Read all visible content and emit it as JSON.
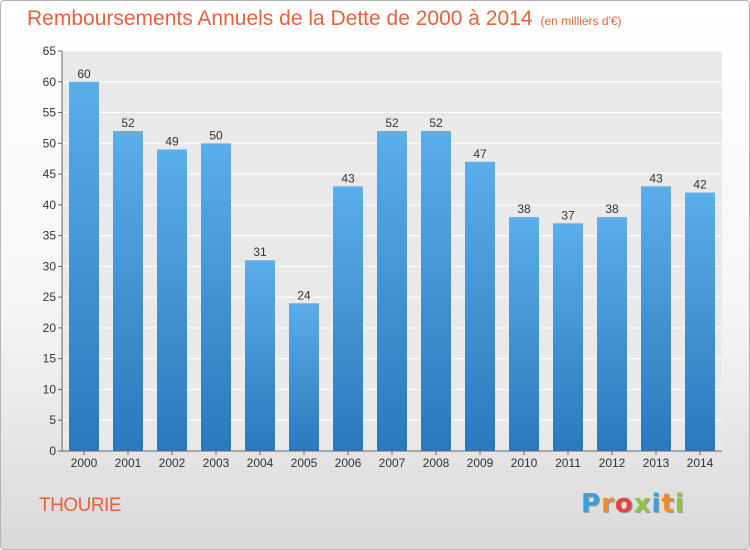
{
  "title": {
    "main": "Remboursements Annuels de la Dette de 2000 à 2014",
    "unit": "(en milliers d'€)"
  },
  "city": "THOURIE",
  "logo": {
    "text": "Proxiti",
    "letters": [
      "P",
      "r",
      "o",
      "x",
      "i",
      "t",
      "i"
    ],
    "colors": [
      "#3aa0dc",
      "#f28c28",
      "#e8413a",
      "#8cc63f",
      "#3aa0dc",
      "#f28c28",
      "#8cc63f"
    ]
  },
  "colors": {
    "title": "#e8613a",
    "bar_top": "#5aaeea",
    "bar_bottom": "#2a78bd"
  },
  "chart_data": {
    "type": "bar",
    "title": "Remboursements Annuels de la Dette de 2000 à 2014",
    "subtitle": "(en milliers d'€)",
    "categories": [
      "2000",
      "2001",
      "2002",
      "2003",
      "2004",
      "2005",
      "2006",
      "2007",
      "2008",
      "2009",
      "2010",
      "2011",
      "2012",
      "2013",
      "2014"
    ],
    "values": [
      60,
      52,
      49,
      50,
      31,
      24,
      43,
      52,
      52,
      47,
      38,
      37,
      38,
      43,
      42
    ],
    "ylim": [
      0,
      65
    ],
    "yticks": [
      0,
      5,
      10,
      15,
      20,
      25,
      30,
      35,
      40,
      45,
      50,
      55,
      60,
      65
    ],
    "grid": true,
    "xlabel": "",
    "ylabel": ""
  }
}
